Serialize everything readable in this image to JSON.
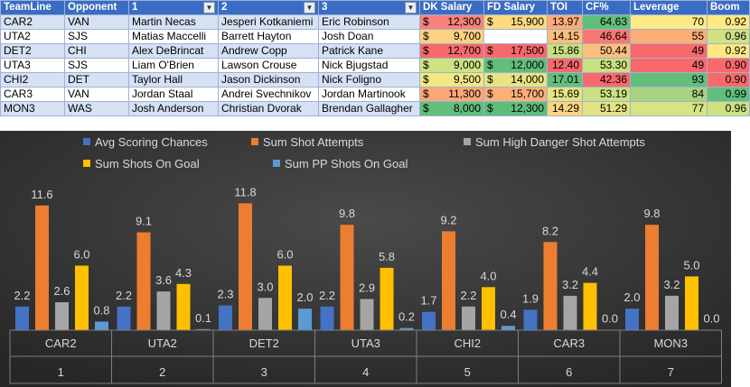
{
  "table": {
    "headers": [
      "TeamLine",
      "Opponent",
      "1",
      "2",
      "3",
      "DK Salary",
      "FD Salary",
      "TOI",
      "CF%",
      "Leverage",
      "Boom"
    ],
    "rows": [
      {
        "team": "CAR2",
        "opp": "VAN",
        "p1": "Martin Necas",
        "p2": "Jesperi Kotkaniemi",
        "p3": "Eric Robinson",
        "dk": "12,300",
        "fd": "15,900",
        "toi": "13.97",
        "cf": "64.63",
        "lev": "70",
        "boom": "0.92"
      },
      {
        "team": "UTA2",
        "opp": "SJS",
        "p1": "Matias Maccelli",
        "p2": "Barrett Hayton",
        "p3": "Josh Doan",
        "dk": "9,700",
        "fd": "",
        "toi": "14.15",
        "cf": "46.64",
        "lev": "55",
        "boom": "0.96"
      },
      {
        "team": "DET2",
        "opp": "CHI",
        "p1": "Alex DeBrincat",
        "p2": "Andrew Copp",
        "p3": "Patrick Kane",
        "dk": "12,700",
        "fd": "17,500",
        "toi": "15.86",
        "cf": "50.44",
        "lev": "49",
        "boom": "0.92"
      },
      {
        "team": "UTA3",
        "opp": "SJS",
        "p1": "Liam O'Brien",
        "p2": "Lawson Crouse",
        "p3": "Nick Bjugstad",
        "dk": "9,000",
        "fd": "12,000",
        "toi": "12.40",
        "cf": "53.30",
        "lev": "49",
        "boom": "0.90"
      },
      {
        "team": "CHI2",
        "opp": "DET",
        "p1": "Taylor Hall",
        "p2": "Jason Dickinson",
        "p3": "Nick Foligno",
        "dk": "9,500",
        "fd": "14,000",
        "toi": "17.01",
        "cf": "42.36",
        "lev": "93",
        "boom": "0.90"
      },
      {
        "team": "CAR3",
        "opp": "VAN",
        "p1": "Jordan Staal",
        "p2": "Andrei Svechnikov",
        "p3": "Jordan Martinook",
        "dk": "11,300",
        "fd": "15,700",
        "toi": "15.69",
        "cf": "53.19",
        "lev": "84",
        "boom": "0.99"
      },
      {
        "team": "MON3",
        "opp": "WAS",
        "p1": "Josh Anderson",
        "p2": "Christian Dvorak",
        "p3": "Brendan Gallagher",
        "dk": "8,000",
        "fd": "12,300",
        "toi": "14.29",
        "cf": "51.29",
        "lev": "77",
        "boom": "0.96"
      }
    ],
    "cell_colors": {
      "dk": [
        "#f8827b",
        "#fdd17f",
        "#f8696b",
        "#cfe281",
        "#f1e784",
        "#fba877",
        "#63be7b"
      ],
      "fd": [
        "#fed980",
        "#ffffff",
        "#f8696b",
        "#63be7b",
        "#e7e483",
        "#fbb079",
        "#5fbc79"
      ],
      "toi": [
        "#fbac78",
        "#fcbd7b",
        "#c9df80",
        "#f8696b",
        "#63be7b",
        "#e6e483",
        "#fed480"
      ],
      "cf": [
        "#63be7b",
        "#f8796f",
        "#fcbf7b",
        "#c9df80",
        "#f8696b",
        "#cbe081",
        "#e4e382"
      ],
      "lev": [
        "#fee988",
        "#fdae75",
        "#f8696b",
        "#f8696b",
        "#63be7b",
        "#a8d27f",
        "#d6e481"
      ],
      "boom": [
        "#ffe984",
        "#cfe181",
        "#ffe684",
        "#f8696b",
        "#f8696b",
        "#63be7b",
        "#cfe181"
      ]
    }
  },
  "chart_data": {
    "type": "bar",
    "categories": [
      "CAR2",
      "UTA2",
      "DET2",
      "UTA3",
      "CHI2",
      "CAR3",
      "MON3"
    ],
    "sub_categories": [
      "1",
      "2",
      "3",
      "4",
      "5",
      "6",
      "7"
    ],
    "series": [
      {
        "name": "Avg Scoring Chances",
        "color": "#4472c4",
        "values": [
          2.2,
          2.2,
          2.3,
          2.2,
          1.7,
          1.9,
          2.0
        ]
      },
      {
        "name": "Sum Shot Attempts",
        "color": "#ed7d31",
        "values": [
          11.6,
          9.1,
          11.8,
          9.8,
          9.2,
          8.2,
          9.8
        ]
      },
      {
        "name": "Sum High Danger Shot Attempts",
        "color": "#a5a5a5",
        "values": [
          2.6,
          3.6,
          3.0,
          2.9,
          2.2,
          3.2,
          3.2
        ]
      },
      {
        "name": "Sum Shots On Goal",
        "color": "#ffc000",
        "values": [
          6.0,
          4.3,
          6.0,
          5.8,
          4.0,
          4.4,
          5.0
        ]
      },
      {
        "name": "Sum PP Shots On Goal",
        "color": "#5b9bd5",
        "values": [
          0.8,
          0.1,
          2.0,
          0.2,
          0.4,
          0.0,
          0.0
        ]
      }
    ],
    "labels": [
      [
        "2.2",
        "11.6",
        "2.6",
        "6.0",
        "0.8"
      ],
      [
        "2.2",
        "9.1",
        "3.6",
        "4.3",
        "0.1"
      ],
      [
        "2.3",
        "11.8",
        "3.0",
        "6.0",
        "2.0"
      ],
      [
        "2.2",
        "9.8",
        "2.9",
        "5.8",
        "0.2"
      ],
      [
        "1.7",
        "9.2",
        "2.2",
        "4.0",
        "0.4"
      ],
      [
        "1.9",
        "8.2",
        "3.2",
        "4.4",
        "0.0"
      ],
      [
        "2.0",
        "9.8",
        "3.2",
        "5.0",
        "0.0"
      ]
    ],
    "legend_position": "top",
    "ylim": [
      0,
      13
    ]
  }
}
